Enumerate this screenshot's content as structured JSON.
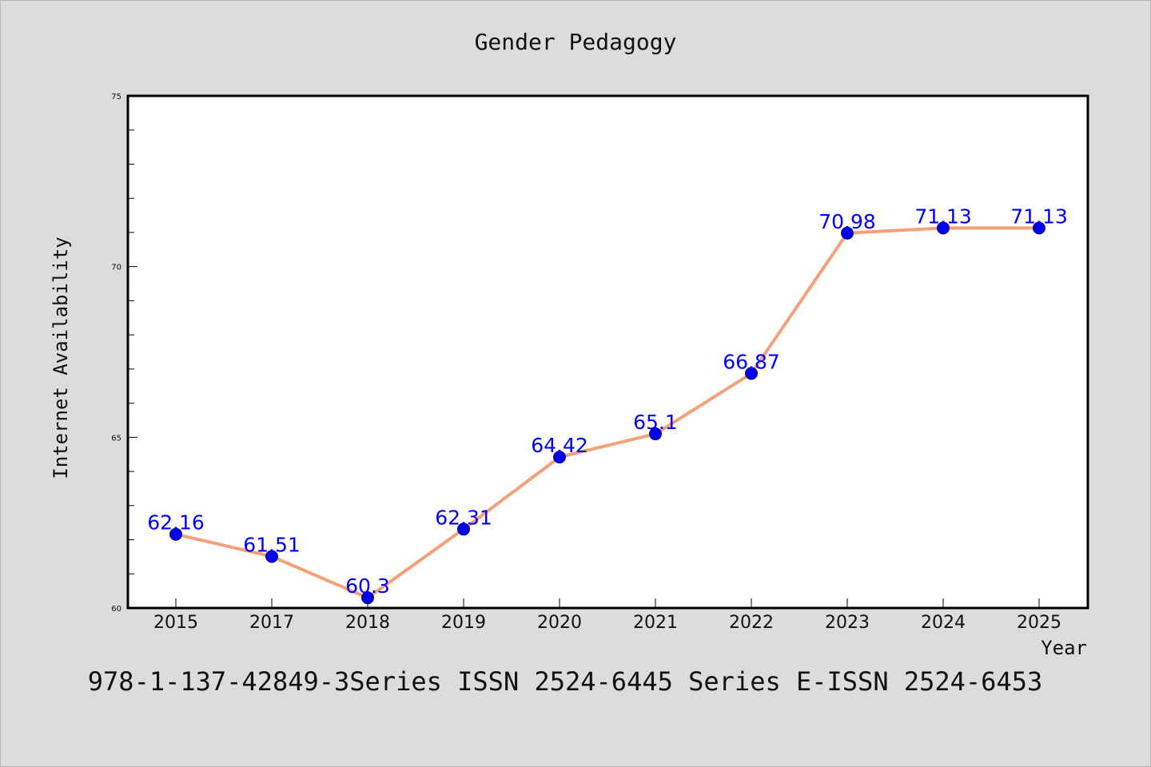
{
  "chart_data": {
    "type": "line",
    "title": "Gender Pedagogy",
    "xlabel": "Year",
    "ylabel": "Internet Availability",
    "categories": [
      "2015",
      "2017",
      "2018",
      "2019",
      "2020",
      "2021",
      "2022",
      "2023",
      "2024",
      "2025"
    ],
    "series": [
      {
        "values": [
          62.16,
          61.51,
          60.3,
          62.31,
          64.42,
          65.1,
          66.87,
          70.98,
          71.13,
          71.13
        ],
        "data_labels": [
          "62.16",
          "61.51",
          "60.3",
          "62.31",
          "64.42",
          "65.1",
          "66.87",
          "70.98",
          "71.13",
          "71.13"
        ],
        "line_color": "#f5a07a",
        "marker_color": "#0000ee"
      }
    ],
    "ylim": [
      60,
      75
    ],
    "y_ticks": [
      "60",
      "65",
      "70",
      "75"
    ],
    "grid": false,
    "legend": "none"
  },
  "footer": {
    "text": "978-1-137-42849-3Series ISSN 2524-6445 Series E-ISSN 2524-6453"
  },
  "colors": {
    "background": "#dcdcdc",
    "plot_background": "#ffffff",
    "line": "#f5a07a",
    "marker": "#0000ee",
    "data_label": "#0000ff"
  }
}
